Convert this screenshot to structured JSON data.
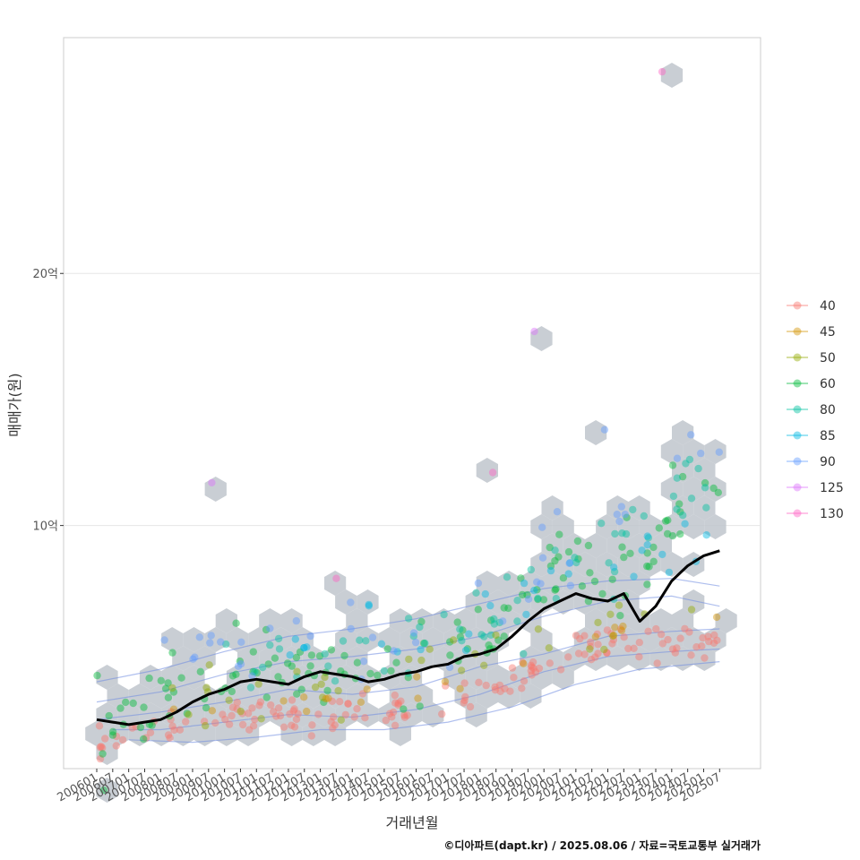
{
  "chart_data": {
    "type": "scatter",
    "title": "",
    "xlabel": "거래년월",
    "ylabel": "매매가(원)",
    "caption": "©디아파트(dapt.kr) / 2025.08.06 / 자료=국토교통부 실거래가",
    "x_range": [
      "2006-01",
      "2025-10"
    ],
    "ylim": [
      0,
      29
    ],
    "y_unit": "억",
    "y_ticks": [
      {
        "value": 10,
        "label": "10억"
      },
      {
        "value": 20,
        "label": "20억"
      }
    ],
    "x_ticks": [
      "200601",
      "200607",
      "200701",
      "200707",
      "200801",
      "200807",
      "200901",
      "200907",
      "201001",
      "201007",
      "201101",
      "201107",
      "201201",
      "201207",
      "201301",
      "201307",
      "201401",
      "201407",
      "201501",
      "201507",
      "201601",
      "201607",
      "201701",
      "201707",
      "201801",
      "201807",
      "201901",
      "201907",
      "202001",
      "202007",
      "202101",
      "202107",
      "202201",
      "202207",
      "202301",
      "202307",
      "202401",
      "202407",
      "202501",
      "202507"
    ],
    "legend": {
      "position": "right",
      "entries": [
        {
          "label": "40",
          "color": "#F8766D"
        },
        {
          "label": "45",
          "color": "#D39200"
        },
        {
          "label": "50",
          "color": "#93AA00"
        },
        {
          "label": "60",
          "color": "#00BA38"
        },
        {
          "label": "80",
          "color": "#00C19F"
        },
        {
          "label": "85",
          "color": "#00B9E3"
        },
        {
          "label": "90",
          "color": "#619CFF"
        },
        {
          "label": "125",
          "color": "#DB72FB"
        },
        {
          "label": "130",
          "color": "#FF61C3"
        }
      ]
    },
    "median_line": {
      "name": "median",
      "color": "#000000",
      "x": [
        2006.0,
        2006.5,
        2007.0,
        2007.5,
        2008.0,
        2008.5,
        2009.0,
        2009.5,
        2010.0,
        2010.5,
        2011.0,
        2011.5,
        2012.0,
        2012.5,
        2013.0,
        2013.5,
        2014.0,
        2014.5,
        2015.0,
        2015.5,
        2016.0,
        2016.5,
        2017.0,
        2017.5,
        2018.0,
        2018.5,
        2019.0,
        2019.5,
        2020.0,
        2020.5,
        2021.0,
        2021.5,
        2022.0,
        2022.5,
        2023.0,
        2023.5,
        2024.0,
        2024.5,
        2025.0,
        2025.5
      ],
      "values": [
        2.3,
        2.2,
        2.1,
        2.2,
        2.3,
        2.6,
        3.0,
        3.3,
        3.5,
        3.8,
        3.9,
        3.8,
        3.7,
        4.0,
        4.2,
        4.1,
        4.0,
        3.8,
        3.9,
        4.1,
        4.2,
        4.4,
        4.5,
        4.8,
        4.9,
        5.1,
        5.6,
        6.2,
        6.7,
        7.0,
        7.3,
        7.1,
        7.0,
        7.3,
        6.2,
        6.8,
        7.8,
        8.4,
        8.8,
        9.0
      ]
    },
    "clusters": [
      {
        "series": "40",
        "trend": [
          [
            2006.0,
            1.3
          ],
          [
            2007.0,
            1.4
          ],
          [
            2008.0,
            1.8
          ],
          [
            2009.0,
            2.2
          ],
          [
            2010.0,
            2.4
          ],
          [
            2011.0,
            2.4
          ],
          [
            2012.0,
            2.5
          ],
          [
            2013.0,
            2.5
          ],
          [
            2014.0,
            2.5
          ],
          [
            2015.0,
            2.7
          ],
          [
            2016.0,
            2.8
          ],
          [
            2017.0,
            3.0
          ],
          [
            2018.0,
            3.5
          ],
          [
            2019.0,
            4.0
          ],
          [
            2020.0,
            4.6
          ],
          [
            2021.0,
            5.0
          ],
          [
            2022.0,
            5.5
          ],
          [
            2023.0,
            5.2
          ],
          [
            2024.0,
            5.4
          ],
          [
            2025.5,
            5.6
          ]
        ],
        "spread": 0.35,
        "count": 160
      },
      {
        "series": "60",
        "trend": [
          [
            2006.0,
            2.0
          ],
          [
            2007.0,
            2.5
          ],
          [
            2008.0,
            3.0
          ],
          [
            2009.0,
            3.6
          ],
          [
            2010.0,
            4.1
          ],
          [
            2011.0,
            4.2
          ],
          [
            2012.0,
            4.1
          ],
          [
            2013.0,
            4.3
          ],
          [
            2014.0,
            4.2
          ],
          [
            2015.0,
            4.3
          ],
          [
            2016.0,
            4.7
          ],
          [
            2017.0,
            5.1
          ],
          [
            2018.0,
            5.7
          ],
          [
            2019.0,
            6.5
          ],
          [
            2020.0,
            7.5
          ],
          [
            2021.0,
            8.6
          ],
          [
            2022.0,
            8.0
          ],
          [
            2023.0,
            8.4
          ],
          [
            2024.0,
            10.2
          ],
          [
            2025.5,
            11.5
          ]
        ],
        "spread": 0.75,
        "count": 140
      },
      {
        "series": "80",
        "trend": [
          [
            2010.0,
            4.5
          ],
          [
            2012.0,
            4.6
          ],
          [
            2014.0,
            4.7
          ],
          [
            2016.0,
            5.2
          ],
          [
            2018.0,
            6.0
          ],
          [
            2020.0,
            7.8
          ],
          [
            2022.0,
            8.8
          ],
          [
            2024.0,
            11.0
          ],
          [
            2025.5,
            12.0
          ]
        ],
        "spread": 0.8,
        "count": 60
      },
      {
        "series": "50",
        "trend": [
          [
            2008.0,
            3.0
          ],
          [
            2012.0,
            3.4
          ],
          [
            2016.0,
            4.2
          ],
          [
            2020.0,
            5.2
          ],
          [
            2023.0,
            6.2
          ],
          [
            2025.5,
            7.6
          ]
        ],
        "spread": 0.6,
        "count": 35
      },
      {
        "series": "85",
        "trend": [
          [
            2012.0,
            4.8
          ],
          [
            2016.0,
            5.4
          ],
          [
            2020.0,
            6.6
          ],
          [
            2022.0,
            8.0
          ],
          [
            2025.5,
            11.0
          ]
        ],
        "spread": 0.7,
        "count": 30
      },
      {
        "series": "90",
        "trend": [
          [
            2007.0,
            4.8
          ],
          [
            2010.0,
            5.2
          ],
          [
            2014.0,
            5.5
          ],
          [
            2017.0,
            6.0
          ],
          [
            2021.0,
            9.0
          ],
          [
            2024.0,
            11.8
          ],
          [
            2025.5,
            12.4
          ]
        ],
        "spread": 0.9,
        "count": 40
      },
      {
        "series": "45",
        "trend": [
          [
            2008.0,
            2.5
          ],
          [
            2012.0,
            3.0
          ],
          [
            2016.0,
            3.5
          ],
          [
            2020.0,
            5.0
          ],
          [
            2023.0,
            6.0
          ],
          [
            2025.5,
            6.4
          ]
        ],
        "spread": 0.4,
        "count": 20
      }
    ],
    "outliers": [
      {
        "series": "125",
        "x": 2009.6,
        "y": 11.7
      },
      {
        "series": "130",
        "x": 2013.5,
        "y": 7.9
      },
      {
        "series": "130",
        "x": 2018.4,
        "y": 12.1
      },
      {
        "series": "125",
        "x": 2019.7,
        "y": 17.7
      },
      {
        "series": "130",
        "x": 2023.7,
        "y": 28.0
      },
      {
        "series": "90",
        "x": 2021.9,
        "y": 13.8
      },
      {
        "series": "90",
        "x": 2024.6,
        "y": 13.6
      }
    ],
    "density_contours": {
      "color": "#6E8BE0",
      "levels": [
        {
          "pts": [
            [
              2006.0,
              2.3
            ],
            [
              2008.0,
              2.6
            ],
            [
              2010.0,
              3.0
            ],
            [
              2012.0,
              3.5
            ],
            [
              2014.0,
              3.3
            ],
            [
              2016.0,
              3.6
            ],
            [
              2018.0,
              4.4
            ],
            [
              2020.0,
              4.9
            ],
            [
              2022.0,
              5.6
            ],
            [
              2024.0,
              5.8
            ],
            [
              2025.5,
              5.9
            ]
          ]
        },
        {
          "pts": [
            [
              2006.5,
              1.9
            ],
            [
              2008.0,
              1.9
            ],
            [
              2010.0,
              2.2
            ],
            [
              2012.0,
              2.5
            ],
            [
              2014.0,
              2.4
            ],
            [
              2016.0,
              2.7
            ],
            [
              2018.0,
              3.3
            ],
            [
              2020.0,
              4.2
            ],
            [
              2022.0,
              4.8
            ],
            [
              2024.0,
              5.0
            ],
            [
              2025.5,
              5.1
            ]
          ]
        },
        {
          "pts": [
            [
              2006.0,
              3.0
            ],
            [
              2008.0,
              3.4
            ],
            [
              2010.0,
              4.1
            ],
            [
              2012.0,
              4.6
            ],
            [
              2014.0,
              4.8
            ],
            [
              2016.0,
              5.1
            ],
            [
              2018.0,
              5.6
            ],
            [
              2020.0,
              6.4
            ],
            [
              2022.0,
              7.0
            ],
            [
              2024.0,
              7.2
            ],
            [
              2025.5,
              6.8
            ]
          ]
        },
        {
          "pts": [
            [
              2006.0,
              3.8
            ],
            [
              2008.0,
              4.3
            ],
            [
              2010.0,
              5.0
            ],
            [
              2012.0,
              5.6
            ],
            [
              2014.0,
              5.9
            ],
            [
              2016.0,
              6.3
            ],
            [
              2018.0,
              6.9
            ],
            [
              2020.0,
              7.5
            ],
            [
              2022.0,
              7.8
            ],
            [
              2024.0,
              7.9
            ],
            [
              2025.5,
              7.6
            ]
          ]
        },
        {
          "pts": [
            [
              2007.0,
              1.5
            ],
            [
              2009.0,
              1.4
            ],
            [
              2011.0,
              1.6
            ],
            [
              2013.0,
              1.9
            ],
            [
              2015.0,
              1.9
            ],
            [
              2017.0,
              2.2
            ],
            [
              2019.0,
              2.8
            ],
            [
              2021.0,
              3.7
            ],
            [
              2023.0,
              4.3
            ],
            [
              2025.5,
              4.6
            ]
          ]
        }
      ]
    }
  }
}
